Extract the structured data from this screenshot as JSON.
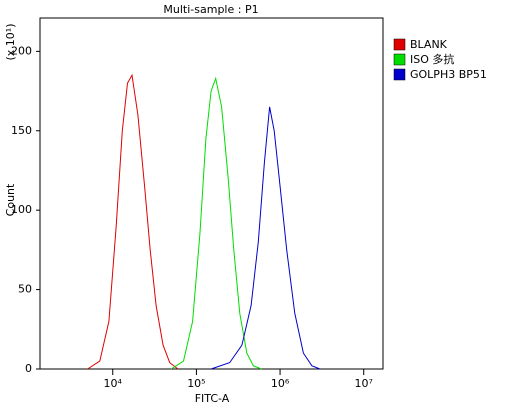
{
  "chart_data": {
    "type": "line",
    "title": "Multi-sample : P1",
    "x_label": "FITC-A",
    "y_label": "Count",
    "y_scale_note": "(x 10¹)",
    "xscale": "log",
    "xlim": [
      1350,
      17000000
    ],
    "xticks": [
      {
        "value": 10000,
        "label": "10⁴"
      },
      {
        "value": 100000,
        "label": "10⁵"
      },
      {
        "value": 1000000,
        "label": "10⁶"
      },
      {
        "value": 10000000,
        "label": "10⁷"
      }
    ],
    "ylim": [
      0,
      221
    ],
    "yticks": [
      0,
      50,
      100,
      150,
      200
    ],
    "legend": "right",
    "series": [
      {
        "name": "BLANK",
        "color": "#e00000",
        "x": [
          5000,
          7000,
          9000,
          11000,
          13000,
          15000,
          17000,
          20000,
          24000,
          28000,
          33000,
          40000,
          48000,
          60000
        ],
        "values": [
          0,
          5,
          30,
          90,
          150,
          180,
          185,
          160,
          115,
          75,
          40,
          15,
          4,
          0
        ]
      },
      {
        "name": "ISO 多抗",
        "color": "#00dd00",
        "x": [
          50000,
          70000,
          90000,
          110000,
          130000,
          150000,
          170000,
          200000,
          240000,
          280000,
          330000,
          400000,
          480000,
          600000
        ],
        "values": [
          0,
          5,
          30,
          85,
          145,
          175,
          183,
          165,
          120,
          75,
          35,
          10,
          2,
          0
        ]
      },
      {
        "name": "GOLPH3 BP51",
        "color": "#0000cc",
        "x": [
          150000,
          250000,
          350000,
          450000,
          550000,
          650000,
          750000,
          850000,
          1000000,
          1200000,
          1500000,
          1900000,
          2400000,
          3000000
        ],
        "values": [
          0,
          4,
          15,
          40,
          80,
          130,
          165,
          150,
          115,
          75,
          35,
          10,
          2,
          0
        ]
      }
    ]
  }
}
